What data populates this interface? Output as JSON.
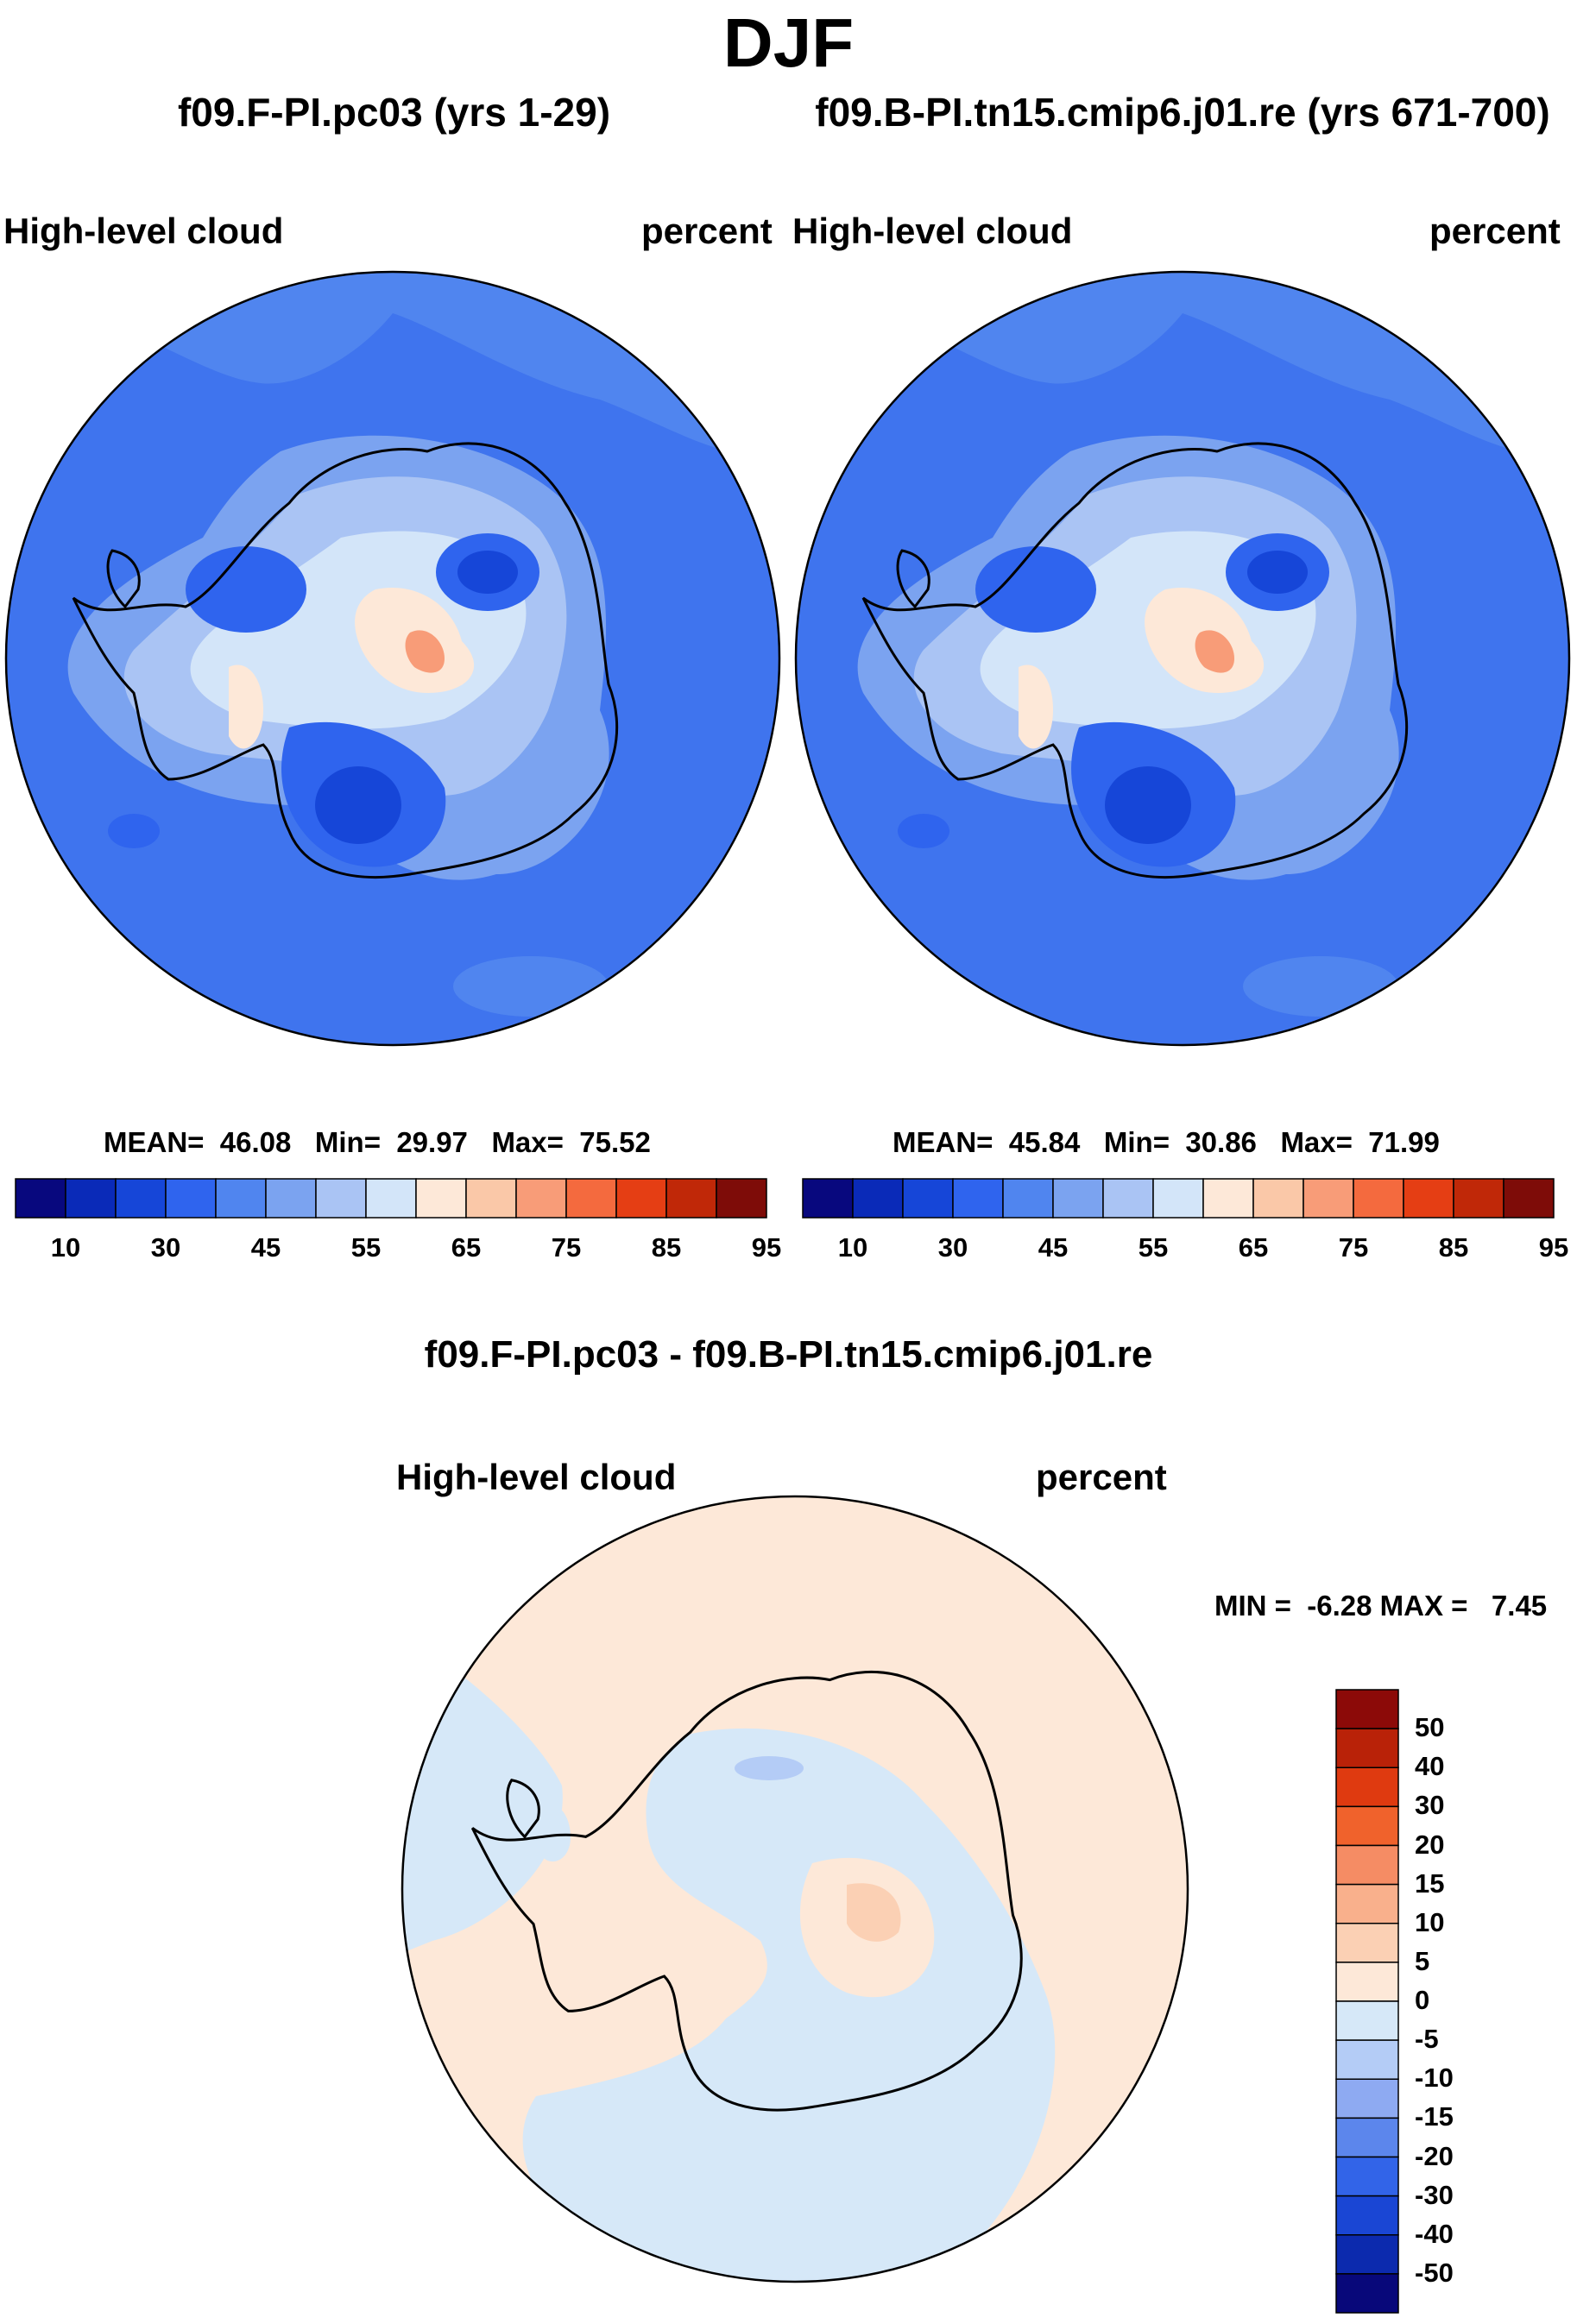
{
  "title": "DJF",
  "panels": [
    {
      "run_title": "f09.F-PI.pc03 (yrs 1-29)",
      "variable": "High-level cloud",
      "units": "percent",
      "stats": {
        "mean_label": "MEAN=",
        "mean": "46.08",
        "min_label": "Min=",
        "min": "29.97",
        "max_label": "Max=",
        "max": "75.52"
      }
    },
    {
      "run_title": "f09.B-PI.tn15.cmip6.j01.re (yrs 671-700)",
      "variable": "High-level cloud",
      "units": "percent",
      "stats": {
        "mean_label": "MEAN=",
        "mean": "45.84",
        "min_label": "Min=",
        "min": "30.86",
        "max_label": "Max=",
        "max": "71.99"
      }
    }
  ],
  "colorbar": {
    "colors": [
      "#08087e",
      "#0a2ab8",
      "#1646d8",
      "#2f64ee",
      "#5085ef",
      "#7ba3f0",
      "#aac4f4",
      "#d3e5f9",
      "#fde8d8",
      "#fac8a8",
      "#f89c78",
      "#f46a3e",
      "#e53e14",
      "#c02808",
      "#7e0c08"
    ],
    "tick_labels": [
      "10",
      "30",
      "45",
      "55",
      "65",
      "75",
      "85",
      "95"
    ]
  },
  "difference": {
    "title": "f09.F-PI.pc03 - f09.B-PI.tn15.cmip6.j01.re",
    "variable": "High-level cloud",
    "units": "percent",
    "stats_text": "MIN =  -6.28 MAX =   7.45",
    "colorbar": {
      "colors": [
        "#8c0a08",
        "#b92208",
        "#df3a10",
        "#f0622c",
        "#f58c64",
        "#f9b08c",
        "#fbd0b4",
        "#fde8d8",
        "#d6e8f8",
        "#b4ccf6",
        "#8eaaf2",
        "#5c86ec",
        "#3264e8",
        "#1a46d4",
        "#0c2aae",
        "#08087a"
      ],
      "tick_labels": [
        "50",
        "40",
        "30",
        "20",
        "15",
        "10",
        "5",
        "0",
        "-5",
        "-10",
        "-15",
        "-20",
        "-30",
        "-40",
        "-50"
      ]
    }
  }
}
